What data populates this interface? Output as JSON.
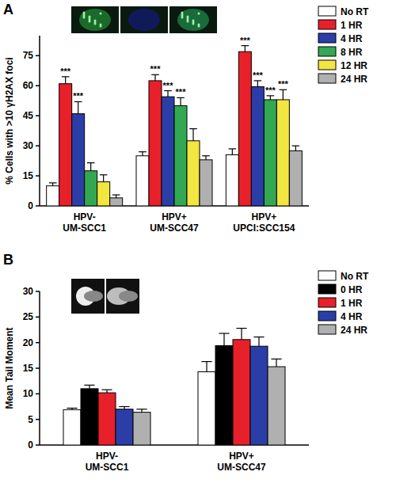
{
  "chart_data": [
    {
      "type": "bar",
      "title": "A",
      "y_label": "% Cells with >10 γH2AX foci",
      "categories": [
        "HPV- UM-SCC1",
        "HPV+ UM-SCC47",
        "HPV+ UPCI:SCC154"
      ],
      "ylim": [
        0,
        85
      ],
      "yticks": [
        0,
        15,
        30,
        45,
        60,
        75
      ],
      "grid": false,
      "legend": "top-right",
      "series": [
        {
          "name": "No RT",
          "color": "#ffffff",
          "values": [
            10,
            25,
            25.5
          ],
          "errors": [
            1.5,
            2,
            3
          ],
          "annotations": [
            null,
            null,
            null
          ]
        },
        {
          "name": "1 HR",
          "color": "#e8202a",
          "values": [
            61,
            62.5,
            77
          ],
          "errors": [
            3.5,
            3,
            3
          ],
          "annotations": [
            "***",
            "***",
            "***"
          ]
        },
        {
          "name": "4 HR",
          "color": "#2b3ea8",
          "values": [
            46,
            54.5,
            59.5
          ],
          "errors": [
            6,
            3,
            3
          ],
          "annotations": [
            "***",
            "***",
            "***"
          ]
        },
        {
          "name": "8 HR",
          "color": "#33a852",
          "values": [
            17.5,
            50,
            53
          ],
          "errors": [
            4,
            4,
            2
          ],
          "annotations": [
            null,
            "***",
            "***"
          ]
        },
        {
          "name": "12 HR",
          "color": "#f2e640",
          "values": [
            12,
            32.5,
            53
          ],
          "errors": [
            3.5,
            6,
            5
          ],
          "annotations": [
            null,
            null,
            "***"
          ]
        },
        {
          "name": "24 HR",
          "color": "#b0b0b0",
          "values": [
            4,
            23,
            27.5
          ],
          "errors": [
            1.5,
            2,
            2.5
          ],
          "annotations": [
            null,
            null,
            null
          ]
        }
      ]
    },
    {
      "type": "bar",
      "title": "B",
      "y_label": "Mean Tail Moment",
      "categories": [
        "HPV- UM-SCC1",
        "HPV+ UM-SCC47"
      ],
      "ylim": [
        0,
        30
      ],
      "yticks": [
        0,
        5,
        10,
        15,
        20,
        25,
        30
      ],
      "grid": false,
      "legend": "top-right",
      "series": [
        {
          "name": "No RT",
          "color": "#ffffff",
          "values": [
            6.9,
            14.3
          ],
          "errors": [
            0.3,
            2
          ]
        },
        {
          "name": "0 HR",
          "color": "#000000",
          "values": [
            11,
            19.4
          ],
          "errors": [
            0.7,
            2.4
          ]
        },
        {
          "name": "1 HR",
          "color": "#e8202a",
          "values": [
            10.2,
            20.6
          ],
          "errors": [
            0.6,
            2.2
          ]
        },
        {
          "name": "4 HR",
          "color": "#2b3ea8",
          "values": [
            7,
            19.3
          ],
          "errors": [
            0.5,
            1.8
          ]
        },
        {
          "name": "24 HR",
          "color": "#b0b0b0",
          "values": [
            6.4,
            15.3
          ],
          "errors": [
            0.6,
            1.5
          ]
        }
      ]
    }
  ]
}
